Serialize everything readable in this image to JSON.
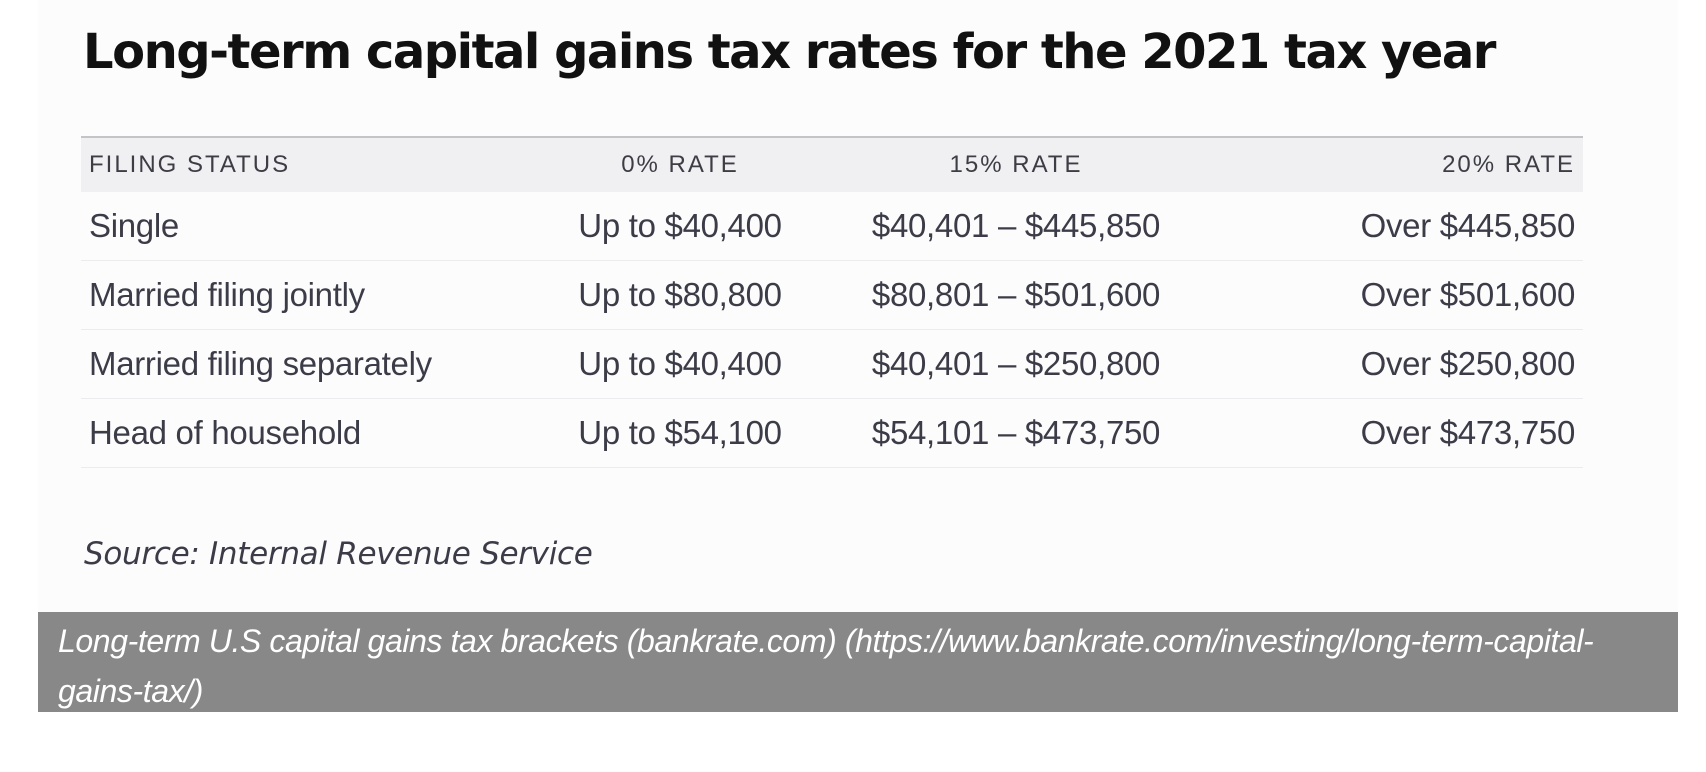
{
  "title": "Long-term capital gains tax rates for the 2021 tax year",
  "table": {
    "headers": [
      "FILING STATUS",
      "0% RATE",
      "15% RATE",
      "20% RATE"
    ],
    "rows": [
      [
        "Single",
        "Up to $40,400",
        "$40,401 – $445,850",
        "Over $445,850"
      ],
      [
        "Married filing jointly",
        "Up to $80,800",
        "$80,801 – $501,600",
        "Over $501,600"
      ],
      [
        "Married filing separately",
        "Up to $40,400",
        "$40,401 – $250,800",
        "Over $250,800"
      ],
      [
        "Head of household",
        "Up to $54,100",
        "$54,101 – $473,750",
        "Over $473,750"
      ]
    ]
  },
  "source": "Source: Internal Revenue Service",
  "caption": "Long-term U.S capital gains tax brackets (bankrate.com) (https://www.bankrate.com/investing/long-term-capital-gains-tax/)"
}
